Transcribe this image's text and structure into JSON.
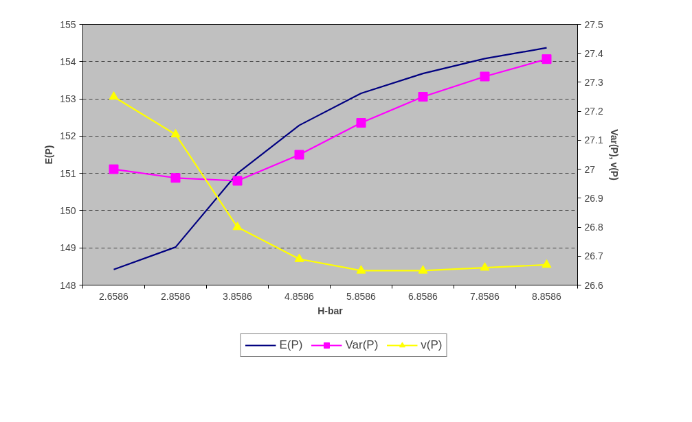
{
  "chart_data": {
    "type": "line",
    "xlabel": "H-bar",
    "ylabel": "E(P)",
    "y2label": "Var(P), v(P)",
    "categories": [
      "2.6586",
      "2.8586",
      "3.8586",
      "4.8586",
      "5.8586",
      "6.8586",
      "7.8586",
      "8.8586"
    ],
    "series": [
      {
        "name": "E(P)",
        "color": "#000080",
        "marker": "none",
        "values": [
          148.42,
          149.02,
          151.0,
          152.29,
          153.15,
          153.68,
          154.08,
          154.37
        ]
      },
      {
        "name": "Var(P)",
        "color": "#ff00ff",
        "marker": "square",
        "axis": "y2",
        "values": [
          27.0,
          26.97,
          26.96,
          27.05,
          27.16,
          27.25,
          27.32,
          27.38
        ]
      },
      {
        "name": "v(P)",
        "color": "#ffff00",
        "marker": "triangle",
        "axis": "y2",
        "values": [
          27.25,
          27.12,
          26.8,
          26.69,
          26.65,
          26.65,
          26.66,
          26.67
        ]
      }
    ],
    "ylim": [
      148,
      155
    ],
    "yticks": [
      148,
      149,
      150,
      151,
      152,
      153,
      154,
      155
    ],
    "y2lim": [
      26.6,
      27.5
    ],
    "y2ticks": [
      26.6,
      26.7,
      26.8,
      26.9,
      27,
      27.1,
      27.2,
      27.3,
      27.4,
      27.5
    ],
    "grid": "y",
    "legend": "bottom",
    "line_style": "solid"
  }
}
